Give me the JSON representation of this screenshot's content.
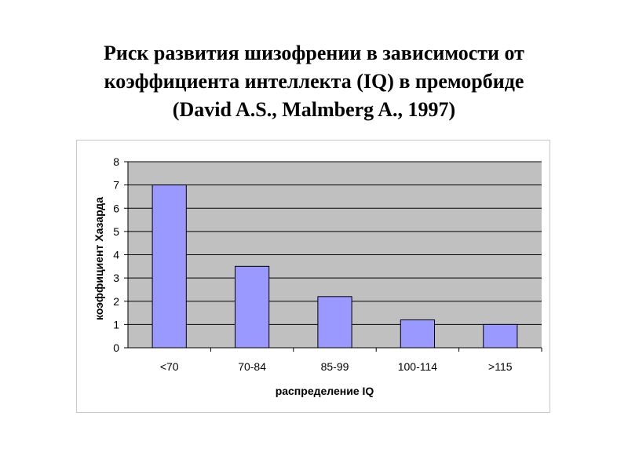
{
  "slide": {
    "title_lines": [
      "Риск развития шизофрении в зависимости от",
      "коэффициента интеллекта (IQ) в преморбиде",
      "(David A.S., Malmberg A., 1997)"
    ]
  },
  "chart_data": {
    "type": "bar",
    "categories": [
      "<70",
      "70-84",
      "85-99",
      "100-114",
      ">115"
    ],
    "values": [
      7.0,
      3.5,
      2.2,
      1.2,
      1.0
    ],
    "xlabel": "распределение IQ",
    "ylabel": "коэффициент Хазарда",
    "ylim": [
      0,
      8
    ],
    "yticks": [
      "0",
      "1",
      "2",
      "3",
      "4",
      "5",
      "6",
      "7",
      "8"
    ],
    "grid": true,
    "colors": {
      "plot_background": "#c0c0c0",
      "bar_fill": "#9999ff",
      "bar_stroke": "#000000",
      "gridline": "#000000"
    }
  }
}
